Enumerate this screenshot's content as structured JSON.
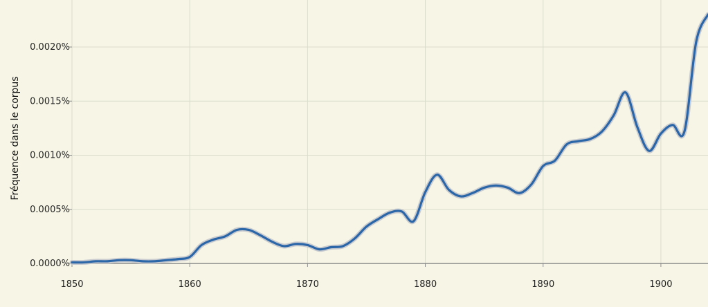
{
  "chart_data": {
    "type": "line",
    "title": "",
    "xlabel": "",
    "ylabel": "Fréquence dans le corpus",
    "xlim": [
      1850,
      1904
    ],
    "ylim": [
      0,
      0.0024
    ],
    "grid": true,
    "x_ticks": [
      {
        "value": 1850,
        "label": "1850"
      },
      {
        "value": 1860,
        "label": "1860"
      },
      {
        "value": 1870,
        "label": "1870"
      },
      {
        "value": 1880,
        "label": "1880"
      },
      {
        "value": 1890,
        "label": "1890"
      },
      {
        "value": 1900,
        "label": "1900"
      }
    ],
    "y_ticks": [
      {
        "value": 0,
        "label": "0.0000%"
      },
      {
        "value": 0.0005,
        "label": "0.0005%"
      },
      {
        "value": 0.001,
        "label": "0.0010%"
      },
      {
        "value": 0.0015,
        "label": "0.0015%"
      },
      {
        "value": 0.002,
        "label": "0.0020%"
      }
    ],
    "series": [
      {
        "color": "#2a66a8",
        "x": [
          1850,
          1851,
          1852,
          1853,
          1854,
          1855,
          1856,
          1857,
          1858,
          1859,
          1860,
          1861,
          1862,
          1863,
          1864,
          1865,
          1866,
          1867,
          1868,
          1869,
          1870,
          1871,
          1872,
          1873,
          1874,
          1875,
          1876,
          1877,
          1878,
          1879,
          1880,
          1881,
          1882,
          1883,
          1884,
          1885,
          1886,
          1887,
          1888,
          1889,
          1890,
          1891,
          1892,
          1893,
          1894,
          1895,
          1896,
          1897,
          1898,
          1899,
          1900,
          1901,
          1902,
          1903,
          1904
        ],
        "y": [
          1e-05,
          1e-05,
          2e-05,
          2e-05,
          3e-05,
          3e-05,
          2e-05,
          2e-05,
          3e-05,
          4e-05,
          6e-05,
          0.00017,
          0.00022,
          0.00025,
          0.00031,
          0.00031,
          0.00026,
          0.0002,
          0.00016,
          0.00018,
          0.00017,
          0.00013,
          0.00015,
          0.00016,
          0.00023,
          0.00034,
          0.00041,
          0.00047,
          0.00048,
          0.00039,
          0.00066,
          0.00082,
          0.00068,
          0.00062,
          0.00065,
          0.0007,
          0.00072,
          0.0007,
          0.00065,
          0.00073,
          0.0009,
          0.00095,
          0.0011,
          0.00113,
          0.00115,
          0.00122,
          0.00137,
          0.00158,
          0.00126,
          0.00104,
          0.0012,
          0.00128,
          0.00122,
          0.00205,
          0.0023
        ]
      }
    ]
  },
  "style": {
    "background": "#f7f6e6",
    "grid_color": "#dcdccc",
    "axis_color": "#8c8c8c",
    "line_color": "#2a66a8",
    "halo_color": "#c3c7cc"
  }
}
